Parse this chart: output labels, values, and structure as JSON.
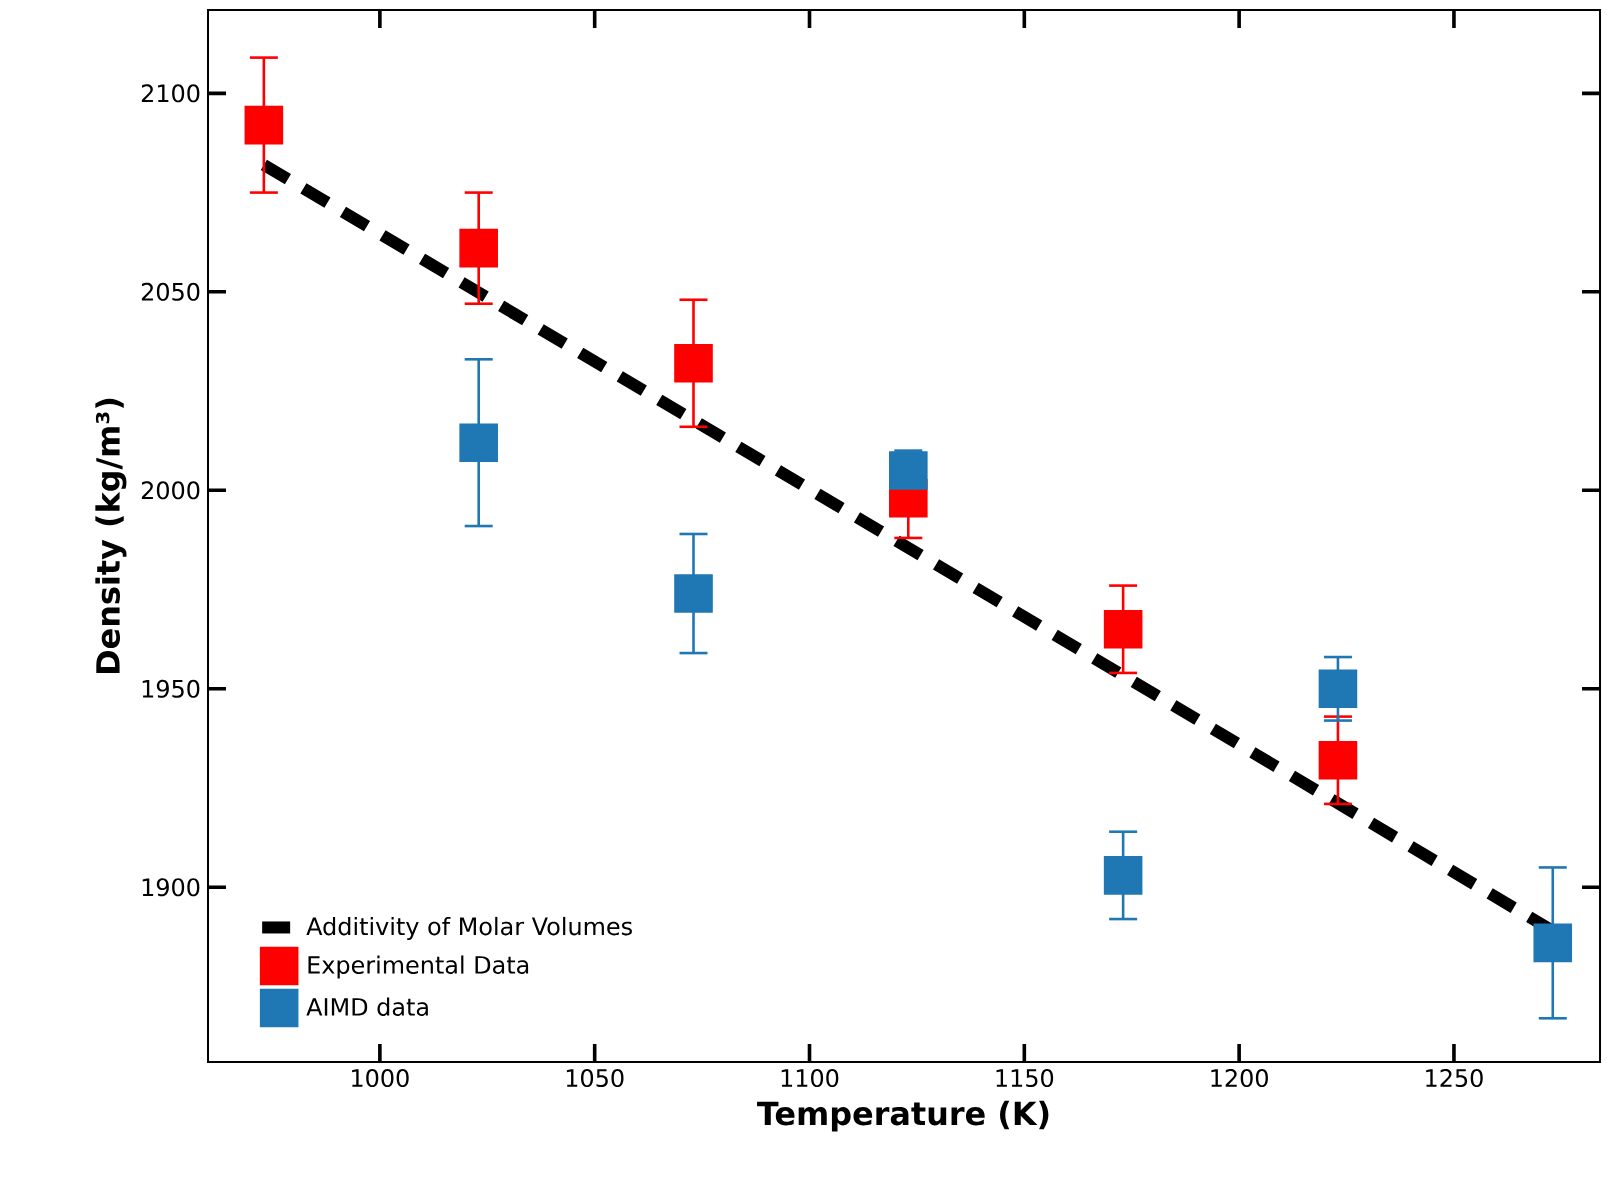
{
  "chart_data": {
    "type": "scatter",
    "xlabel": "Temperature (K)",
    "ylabel": "Density (kg/m³)",
    "xlim": [
      960,
      1284
    ],
    "ylim": [
      1856,
      2121
    ],
    "xticks": [
      1000,
      1050,
      1100,
      1150,
      1200,
      1250
    ],
    "yticks": [
      1900,
      1950,
      2000,
      2050,
      2100
    ],
    "legend": "bottom left",
    "grid": false,
    "marker": "square",
    "series": [
      {
        "name": "Additivity of Molar Volumes",
        "type": "line",
        "line_style": "dashed",
        "marker": "none",
        "color": "#000000",
        "x": [
          973,
          1273
        ],
        "values": [
          2082,
          1889
        ]
      },
      {
        "name": "Experimental Data",
        "color": "#ff0000",
        "x": [
          973,
          1023,
          1073,
          1123,
          1173,
          1223
        ],
        "values": [
          2092,
          2061,
          2032,
          1998,
          1965,
          1932
        ],
        "errors": [
          17,
          14,
          16,
          10,
          11,
          11
        ]
      },
      {
        "name": "AIMD data",
        "color": "#1f77b4",
        "x": [
          1023,
          1073,
          1123,
          1173,
          1223,
          1273
        ],
        "values": [
          2012,
          1974,
          2005,
          1903,
          1950,
          1886
        ],
        "errors": [
          21,
          15,
          5,
          11,
          8,
          19
        ]
      }
    ]
  }
}
